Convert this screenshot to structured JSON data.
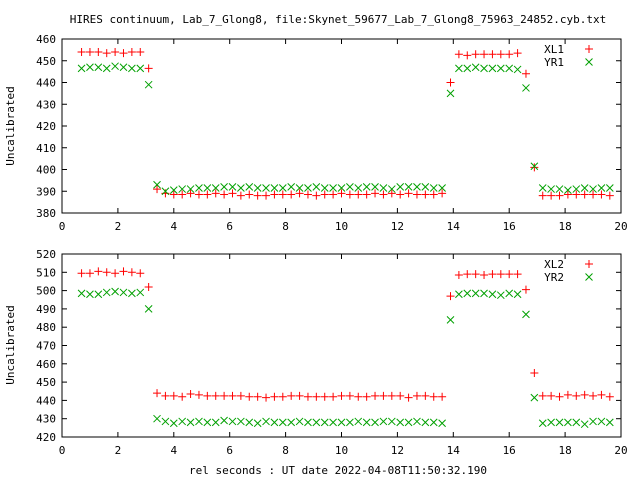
{
  "window": {
    "title": "HIRES continuum, Lab_7_Glong8, file:Skynet_59677_Lab_7_Glong8_75963_24852.cyb.txt",
    "xlabel": "rel seconds : UT date 2022-04-08T11:50:32.190"
  },
  "colors": {
    "series1": "#ff0000",
    "series2": "#00a000"
  },
  "chart_data": [
    {
      "type": "scatter",
      "ylabel": "Uncalibrated",
      "xlim": [
        0,
        20
      ],
      "ylim": [
        380,
        460
      ],
      "x_ticks": [
        0,
        2,
        4,
        6,
        8,
        10,
        12,
        14,
        16,
        18,
        20
      ],
      "y_ticks": [
        380,
        390,
        400,
        410,
        420,
        430,
        440,
        450,
        460
      ],
      "legend_position": "top-right",
      "x": [
        0.7,
        1.0,
        1.3,
        1.6,
        1.9,
        2.2,
        2.5,
        2.8,
        3.1,
        3.4,
        3.7,
        4.0,
        4.3,
        4.6,
        4.9,
        5.2,
        5.5,
        5.8,
        6.1,
        6.4,
        6.7,
        7.0,
        7.3,
        7.6,
        7.9,
        8.2,
        8.5,
        8.8,
        9.1,
        9.4,
        9.7,
        10.0,
        10.3,
        10.6,
        10.9,
        11.2,
        11.5,
        11.8,
        12.1,
        12.4,
        12.7,
        13.0,
        13.3,
        13.6,
        13.9,
        14.2,
        14.5,
        14.8,
        15.1,
        15.4,
        15.7,
        16.0,
        16.3,
        16.6,
        16.9,
        17.2,
        17.5,
        17.8,
        18.1,
        18.4,
        18.7,
        19.0,
        19.3,
        19.6
      ],
      "series": [
        {
          "name": "XL1",
          "marker": "plus",
          "color": "#ff0000",
          "values": [
            454,
            454,
            454,
            453.5,
            454,
            453.5,
            454,
            454,
            446.5,
            391,
            389,
            388.5,
            388.5,
            389,
            388.5,
            388.5,
            389,
            388.5,
            389,
            388,
            388.5,
            388,
            388,
            388.5,
            388.5,
            388.5,
            389,
            388.5,
            388,
            388.5,
            388.5,
            389,
            388.5,
            388.5,
            388.5,
            389,
            388.5,
            389,
            388.5,
            389,
            388.5,
            388.5,
            388.5,
            389,
            440,
            453,
            452.5,
            453,
            453,
            453,
            453,
            453,
            453.5,
            444,
            401,
            388,
            388,
            388,
            388.5,
            388.5,
            388.5,
            388.5,
            388.5,
            388
          ]
        },
        {
          "name": "YR1",
          "marker": "cross",
          "color": "#00a000",
          "values": [
            446.5,
            447,
            447,
            446.5,
            447.5,
            447,
            446.5,
            446.5,
            439,
            393,
            390,
            390.5,
            391,
            391,
            391.5,
            391.5,
            391.5,
            392,
            392,
            391.5,
            392,
            391.5,
            391.5,
            391.5,
            391.5,
            392,
            391.5,
            391.5,
            392,
            391.5,
            391.5,
            391.5,
            392,
            391.5,
            392,
            392,
            391.5,
            391,
            392,
            392,
            392,
            392,
            391.5,
            391.5,
            435,
            446.5,
            446.5,
            447,
            446.5,
            446.5,
            446.5,
            446.5,
            446,
            437.5,
            401.5,
            391.5,
            391,
            391,
            390.5,
            391,
            391.5,
            391,
            391.5,
            391.5
          ]
        }
      ]
    },
    {
      "type": "scatter",
      "ylabel": "Uncalibrated",
      "xlim": [
        0,
        20
      ],
      "ylim": [
        420,
        520
      ],
      "x_ticks": [
        0,
        2,
        4,
        6,
        8,
        10,
        12,
        14,
        16,
        18,
        20
      ],
      "y_ticks": [
        420,
        430,
        440,
        450,
        460,
        470,
        480,
        490,
        500,
        510,
        520
      ],
      "legend_position": "top-right",
      "x": [
        0.7,
        1.0,
        1.3,
        1.6,
        1.9,
        2.2,
        2.5,
        2.8,
        3.1,
        3.4,
        3.7,
        4.0,
        4.3,
        4.6,
        4.9,
        5.2,
        5.5,
        5.8,
        6.1,
        6.4,
        6.7,
        7.0,
        7.3,
        7.6,
        7.9,
        8.2,
        8.5,
        8.8,
        9.1,
        9.4,
        9.7,
        10.0,
        10.3,
        10.6,
        10.9,
        11.2,
        11.5,
        11.8,
        12.1,
        12.4,
        12.7,
        13.0,
        13.3,
        13.6,
        13.9,
        14.2,
        14.5,
        14.8,
        15.1,
        15.4,
        15.7,
        16.0,
        16.3,
        16.6,
        16.9,
        17.2,
        17.5,
        17.8,
        18.1,
        18.4,
        18.7,
        19.0,
        19.3,
        19.6
      ],
      "series": [
        {
          "name": "XL2",
          "marker": "plus",
          "color": "#ff0000",
          "values": [
            509.5,
            509.5,
            510.5,
            510,
            509.5,
            510.5,
            510,
            509.5,
            502,
            444,
            442.5,
            442.5,
            442,
            443.5,
            443,
            442.5,
            442.5,
            442.5,
            442.5,
            442.5,
            442,
            442,
            441.5,
            442,
            442,
            442.5,
            442.5,
            442,
            442,
            442,
            442,
            442.5,
            442.5,
            442,
            442,
            442.5,
            442.5,
            442.5,
            442.5,
            441.5,
            442.5,
            442.5,
            442,
            442,
            497,
            508.5,
            509,
            509,
            508.5,
            509,
            509,
            509,
            509,
            500.5,
            455,
            442.5,
            442.5,
            442,
            443,
            442.5,
            443,
            442.5,
            443,
            442
          ]
        },
        {
          "name": "YR2",
          "marker": "cross",
          "color": "#00a000",
          "values": [
            498.5,
            498,
            498,
            499,
            499.5,
            499,
            498.5,
            499,
            490,
            430,
            428.5,
            427.5,
            428.5,
            428,
            428.5,
            428,
            428,
            429,
            428.5,
            428.5,
            428,
            427.5,
            428.5,
            428,
            428,
            428,
            428.5,
            428,
            428,
            428,
            428,
            428,
            428,
            428.5,
            428,
            428,
            428.5,
            428.5,
            428,
            428,
            428.5,
            428,
            428,
            427.5,
            484,
            498,
            498.5,
            498.5,
            498.5,
            498,
            497.5,
            498.5,
            498,
            487,
            441.5,
            427.5,
            428,
            428,
            428,
            428,
            427,
            428.5,
            428.5,
            428
          ]
        }
      ]
    }
  ]
}
